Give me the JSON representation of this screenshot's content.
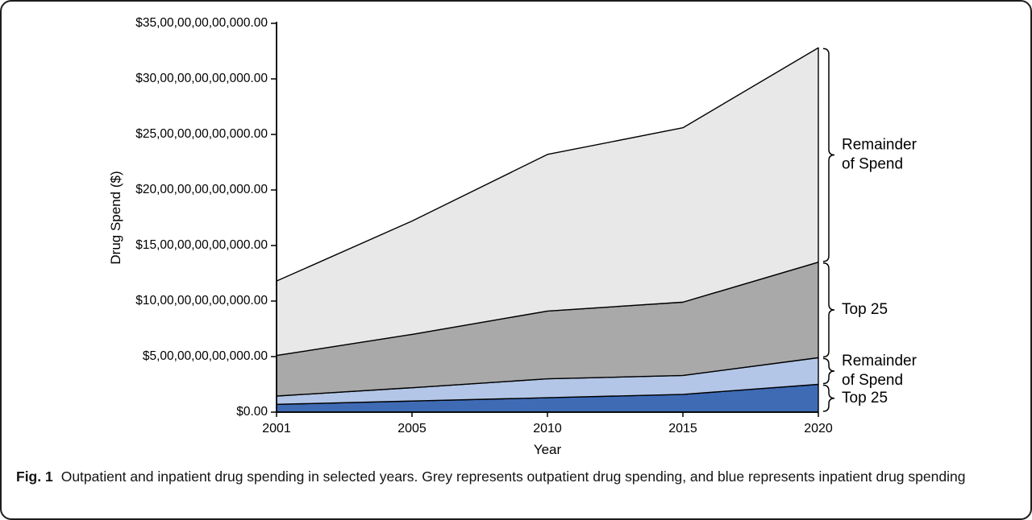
{
  "figure": {
    "caption_label": "Fig. 1",
    "caption_text": "Outpatient and inpatient drug spending in selected years. Grey represents outpatient drug spending, and blue represents inpatient drug spending"
  },
  "chart_data": {
    "type": "area",
    "stacked": true,
    "title": "",
    "xlabel": "Year",
    "ylabel": "Drug Spend ($)",
    "categories": [
      "2001",
      "2005",
      "2010",
      "2015",
      "2020"
    ],
    "ylim": [
      0,
      35
    ],
    "grid": false,
    "legend": "none",
    "outline_color": "#000000",
    "y_ticks": [
      {
        "value": 0,
        "label": "$0.00"
      },
      {
        "value": 5,
        "label": "$5,00,00,00,00,000.00"
      },
      {
        "value": 10,
        "label": "$10,00,00,00,00,000.00"
      },
      {
        "value": 15,
        "label": "$15,00,00,00,00,000.00"
      },
      {
        "value": 20,
        "label": "$20,00,00,00,00,000.00"
      },
      {
        "value": 25,
        "label": "$25,00,00,00,00,000.00"
      },
      {
        "value": 30,
        "label": "$30,00,00,00,00,000.00"
      },
      {
        "value": 35,
        "label": "$35,00,00,00,00,000.00"
      }
    ],
    "y_axis_unit_note": "axis units match tick labels (1 unit = $1,00,00,00,00,000.00)",
    "series": [
      {
        "name": "Inpatient Top 25",
        "color": "#3F6BB5",
        "values": [
          0.7,
          1.0,
          1.3,
          1.6,
          2.5
        ]
      },
      {
        "name": "Inpatient Remainder of Spend",
        "color": "#B3C6E7",
        "values": [
          0.75,
          1.2,
          1.7,
          1.7,
          2.4
        ]
      },
      {
        "name": "Outpatient Top 25",
        "color": "#A9A9A9",
        "values": [
          3.65,
          4.8,
          6.1,
          6.6,
          8.6
        ]
      },
      {
        "name": "Outpatient Remainder of Spend",
        "color": "#E8E8E8",
        "values": [
          6.7,
          10.2,
          14.1,
          15.7,
          19.3
        ]
      }
    ],
    "annotations": [
      {
        "series_index": 3,
        "lines": [
          "Remainder",
          "of Spend"
        ]
      },
      {
        "series_index": 2,
        "lines": [
          "Top 25"
        ]
      },
      {
        "series_index": 1,
        "lines": [
          "Remainder",
          "of Spend"
        ]
      },
      {
        "series_index": 0,
        "lines": [
          "Top 25"
        ]
      }
    ]
  }
}
